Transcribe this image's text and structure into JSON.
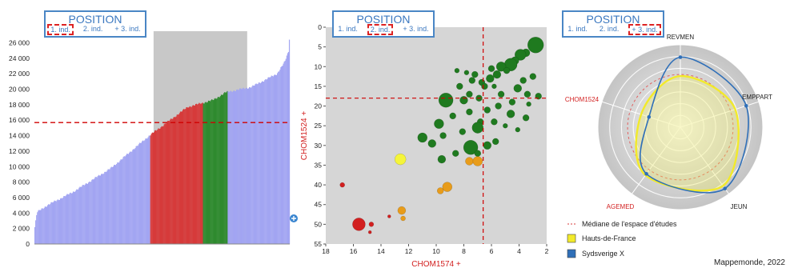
{
  "position_widget": {
    "title": "POSITION",
    "options": [
      "1. ind.",
      "2. ind.",
      "+ 3. ind."
    ]
  },
  "credit": "Mappemonde, 2022",
  "chart_data": [
    {
      "type": "bar",
      "title": "",
      "y_ticks": [
        0,
        2000,
        4000,
        6000,
        8000,
        10000,
        12000,
        14000,
        16000,
        18000,
        20000,
        22000,
        24000,
        26000
      ],
      "y_tick_labels": [
        "0",
        "2 000",
        "4 000",
        "6 000",
        "8 000",
        "10 000",
        "12 000",
        "14 000",
        "16 000",
        "18 000",
        "20 000",
        "22 000",
        "24 000",
        "26 000"
      ],
      "ylim": [
        0,
        27500
      ],
      "bar_count": 300,
      "median_line": 15700,
      "highlight_bar_range": [
        140,
        250
      ],
      "value_profile": {
        "x_fraction": [
          0,
          0.01,
          0.05,
          0.15,
          0.3,
          0.45,
          0.6,
          0.7,
          0.75,
          0.85,
          0.95,
          0.98,
          0.995,
          1
        ],
        "value": [
          1800,
          4100,
          5000,
          6700,
          9800,
          14000,
          17700,
          18600,
          19600,
          20300,
          22000,
          23500,
          24900,
          27300
        ]
      },
      "segments": [
        {
          "from": 0.0,
          "to": 0.453,
          "color": "#a2a5f2"
        },
        {
          "from": 0.453,
          "to": 0.661,
          "color": "#d63a3a"
        },
        {
          "from": 0.661,
          "to": 0.758,
          "color": "#2e8a2e"
        },
        {
          "from": 0.758,
          "to": 1.0,
          "color": "#a2a5f2"
        }
      ],
      "colors": {
        "median": "#d00000",
        "band": "#c8c8c8"
      }
    },
    {
      "type": "scatter",
      "xlabel": "CHOM1574 +",
      "ylabel": "CHOM1524 +",
      "x_reversed": true,
      "y_reversed": true,
      "xlim": [
        18,
        2
      ],
      "ylim": [
        0,
        55
      ],
      "x_ticks": [
        18,
        16,
        14,
        12,
        10,
        8,
        6,
        4,
        2
      ],
      "y_ticks": [
        0,
        5,
        10,
        15,
        20,
        25,
        30,
        35,
        40,
        45,
        50,
        55
      ],
      "median_x": 6.6,
      "median_y": 18,
      "colors": {
        "green": "#1f7a1f",
        "orange": "#e89c1a",
        "yellow": "#f5f53a",
        "red": "#d21f1f"
      },
      "points": [
        {
          "x": 2.8,
          "y": 4.5,
          "r": 10,
          "c": "green"
        },
        {
          "x": 3.5,
          "y": 6.5,
          "r": 5,
          "c": "green"
        },
        {
          "x": 3.9,
          "y": 7,
          "r": 7,
          "c": "green"
        },
        {
          "x": 4.3,
          "y": 8.5,
          "r": 5,
          "c": "green"
        },
        {
          "x": 4.6,
          "y": 9.5,
          "r": 8,
          "c": "green"
        },
        {
          "x": 5.3,
          "y": 10,
          "r": 6,
          "c": "green"
        },
        {
          "x": 4.9,
          "y": 11,
          "r": 4,
          "c": "green"
        },
        {
          "x": 5.6,
          "y": 12,
          "r": 5,
          "c": "green"
        },
        {
          "x": 6,
          "y": 10.5,
          "r": 4,
          "c": "green"
        },
        {
          "x": 6.1,
          "y": 13,
          "r": 5,
          "c": "green"
        },
        {
          "x": 3,
          "y": 12.5,
          "r": 4,
          "c": "green"
        },
        {
          "x": 3.7,
          "y": 13.5,
          "r": 4,
          "c": "green"
        },
        {
          "x": 4.1,
          "y": 15.5,
          "r": 5,
          "c": "green"
        },
        {
          "x": 3.4,
          "y": 17,
          "r": 4,
          "c": "green"
        },
        {
          "x": 2.6,
          "y": 17.5,
          "r": 4,
          "c": "green"
        },
        {
          "x": 3.3,
          "y": 19.5,
          "r": 3,
          "c": "green"
        },
        {
          "x": 4.5,
          "y": 19,
          "r": 4,
          "c": "green"
        },
        {
          "x": 5.3,
          "y": 17,
          "r": 4,
          "c": "green"
        },
        {
          "x": 5.8,
          "y": 15,
          "r": 3,
          "c": "green"
        },
        {
          "x": 6.7,
          "y": 14,
          "r": 4,
          "c": "green"
        },
        {
          "x": 7.2,
          "y": 12,
          "r": 4,
          "c": "green"
        },
        {
          "x": 7.8,
          "y": 11.5,
          "r": 3,
          "c": "green"
        },
        {
          "x": 8.5,
          "y": 11,
          "r": 3,
          "c": "green"
        },
        {
          "x": 7.4,
          "y": 13.5,
          "r": 4,
          "c": "green"
        },
        {
          "x": 8.3,
          "y": 15,
          "r": 4,
          "c": "green"
        },
        {
          "x": 6.5,
          "y": 15,
          "r": 4,
          "c": "green"
        },
        {
          "x": 7.6,
          "y": 17,
          "r": 4,
          "c": "green"
        },
        {
          "x": 9.3,
          "y": 18.5,
          "r": 9,
          "c": "green"
        },
        {
          "x": 8,
          "y": 18.5,
          "r": 5,
          "c": "green"
        },
        {
          "x": 6.9,
          "y": 18,
          "r": 4,
          "c": "green"
        },
        {
          "x": 6.3,
          "y": 21,
          "r": 4,
          "c": "green"
        },
        {
          "x": 5.5,
          "y": 20,
          "r": 4,
          "c": "green"
        },
        {
          "x": 4.6,
          "y": 22,
          "r": 5,
          "c": "green"
        },
        {
          "x": 3.5,
          "y": 23,
          "r": 4,
          "c": "green"
        },
        {
          "x": 5.8,
          "y": 24,
          "r": 4,
          "c": "green"
        },
        {
          "x": 6.8,
          "y": 24,
          "r": 4,
          "c": "green"
        },
        {
          "x": 7.6,
          "y": 21.5,
          "r": 4,
          "c": "green"
        },
        {
          "x": 8.8,
          "y": 22.5,
          "r": 4,
          "c": "green"
        },
        {
          "x": 9.8,
          "y": 24.5,
          "r": 6,
          "c": "green"
        },
        {
          "x": 7,
          "y": 25.5,
          "r": 7,
          "c": "green"
        },
        {
          "x": 8.1,
          "y": 26.5,
          "r": 4,
          "c": "green"
        },
        {
          "x": 9.5,
          "y": 27.5,
          "r": 4,
          "c": "green"
        },
        {
          "x": 11,
          "y": 28,
          "r": 6,
          "c": "green"
        },
        {
          "x": 10.3,
          "y": 29.5,
          "r": 5,
          "c": "green"
        },
        {
          "x": 7.5,
          "y": 30.5,
          "r": 9,
          "c": "green"
        },
        {
          "x": 6.3,
          "y": 30,
          "r": 5,
          "c": "green"
        },
        {
          "x": 5.7,
          "y": 29,
          "r": 4,
          "c": "green"
        },
        {
          "x": 7,
          "y": 32,
          "r": 4,
          "c": "green"
        },
        {
          "x": 8.6,
          "y": 32,
          "r": 4,
          "c": "green"
        },
        {
          "x": 9.6,
          "y": 33.5,
          "r": 5,
          "c": "green"
        },
        {
          "x": 4.1,
          "y": 26,
          "r": 3,
          "c": "green"
        },
        {
          "x": 5,
          "y": 25,
          "r": 3,
          "c": "green"
        },
        {
          "x": 12.6,
          "y": 33.5,
          "r": 7,
          "c": "yellow"
        },
        {
          "x": 7.6,
          "y": 34,
          "r": 5,
          "c": "orange"
        },
        {
          "x": 7,
          "y": 34,
          "r": 6,
          "c": "orange"
        },
        {
          "x": 9.2,
          "y": 40.5,
          "r": 6,
          "c": "orange"
        },
        {
          "x": 9.7,
          "y": 41.5,
          "r": 4,
          "c": "orange"
        },
        {
          "x": 12.5,
          "y": 46.5,
          "r": 5,
          "c": "orange"
        },
        {
          "x": 12.4,
          "y": 48.5,
          "r": 3,
          "c": "orange"
        },
        {
          "x": 16.8,
          "y": 40,
          "r": 3,
          "c": "red"
        },
        {
          "x": 15.6,
          "y": 50,
          "r": 8,
          "c": "red"
        },
        {
          "x": 14.7,
          "y": 50,
          "r": 3,
          "c": "red"
        },
        {
          "x": 14.8,
          "y": 52,
          "r": 2,
          "c": "red"
        },
        {
          "x": 13.4,
          "y": 48,
          "r": 2,
          "c": "red"
        }
      ]
    },
    {
      "type": "radar",
      "axes": [
        "REVMEN",
        "EMPPART",
        "JEUN",
        "AGEMED",
        "CHOM1524"
      ],
      "axis_label_colors": [
        "#222222",
        "#222222",
        "#222222",
        "#d21f1f",
        "#d21f1f"
      ],
      "rings": 7,
      "series": [
        {
          "key": "median",
          "values": [
            0.64,
            0.64,
            0.64,
            0.64,
            0.64
          ],
          "color": "#e06060",
          "style": "dashed-circle"
        },
        {
          "key": "hdf",
          "values": [
            0.62,
            0.7,
            0.88,
            0.72,
            0.5
          ],
          "color": "#f2ea2a",
          "fill": "rgba(240,236,90,0.32)"
        },
        {
          "key": "syd",
          "values": [
            0.85,
            0.84,
            0.92,
            0.7,
            0.4
          ],
          "color": "#2f6fb8"
        }
      ],
      "legend": [
        {
          "label": "Médiane de l'espace d'études",
          "symbol": "dash",
          "color": "#e06060"
        },
        {
          "label": "Hauts-de-France",
          "symbol": "square",
          "color": "#f2ea2a"
        },
        {
          "label": "Sydsverige  X",
          "symbol": "square",
          "color": "#2f6fb8"
        }
      ]
    }
  ]
}
